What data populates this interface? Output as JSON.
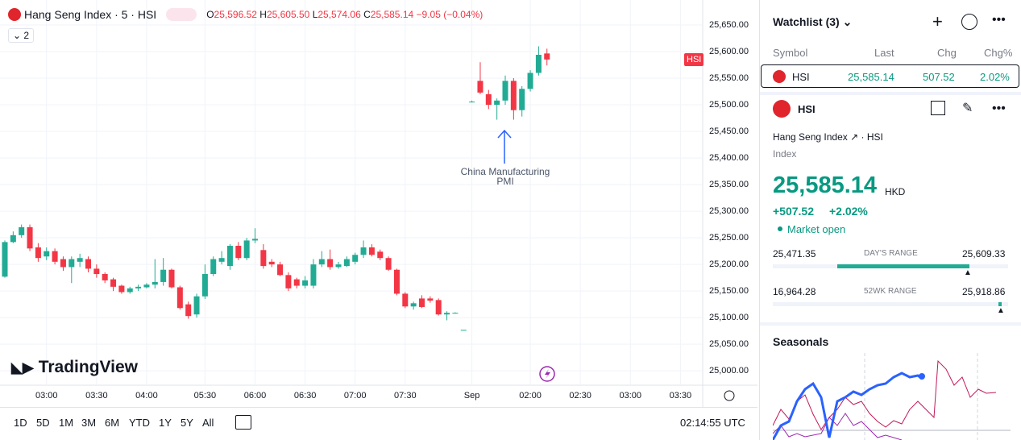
{
  "header": {
    "title": "Hang Seng Index · 5 · HSI",
    "o_label": "O",
    "o": "25,596.52",
    "h_label": "H",
    "h": "25,605.50",
    "l_label": "L",
    "l": "25,574.06",
    "c_label": "C",
    "c": "25,585.14",
    "change": "−9.05 (−0.04%)",
    "indicators": "2"
  },
  "chart_data": {
    "type": "candlestick",
    "categories": [
      null,
      null,
      null,
      null,
      null,
      "03:00",
      null,
      null,
      null,
      null,
      null,
      "03:30",
      null,
      null,
      null,
      null,
      null,
      "04:00",
      null,
      null,
      null,
      null,
      null,
      null,
      "05:30",
      null,
      null,
      null,
      null,
      null,
      "06:00",
      null,
      null,
      null,
      null,
      null,
      "06:30",
      null,
      null,
      null,
      null,
      null,
      "07:00",
      null,
      null,
      null,
      null,
      null,
      "07:30",
      null,
      null,
      null,
      null,
      null,
      null,
      null,
      "Sep",
      null,
      null,
      null,
      null,
      null,
      null,
      "02:00",
      null,
      null,
      null,
      null,
      null,
      "02:30",
      null,
      null,
      null,
      null,
      null,
      "03:00",
      null,
      null,
      null,
      null,
      null,
      "03:30"
    ],
    "open": [
      25177,
      25242,
      25255,
      25270,
      25232,
      25215,
      25225,
      25210,
      25195,
      25205,
      25210,
      25192,
      25182,
      25172,
      25160,
      25148,
      25155,
      25157,
      25162,
      25167,
      25190,
      25157,
      25125,
      25106,
      25140,
      25182,
      25205,
      25197,
      25235,
      25212,
      25245,
      25227,
      25205,
      25200,
      25180,
      25172,
      25160,
      25160,
      25200,
      25210,
      25195,
      25197,
      25205,
      25218,
      25232,
      25224,
      25212,
      25190,
      25145,
      25121,
      25136,
      25136,
      25133,
      25106,
      25108,
      25077,
      25506,
      25545,
      25520,
      25500,
      25508,
      25545,
      25490,
      25530,
      25560,
      25596.52,
      null,
      null,
      null,
      null,
      null,
      null,
      null,
      null,
      null,
      null,
      null,
      null,
      null,
      null,
      null,
      null
    ],
    "high": [
      25245,
      25262,
      25275,
      25275,
      25240,
      25232,
      25230,
      25215,
      25215,
      25220,
      25215,
      25200,
      25185,
      25175,
      25162,
      25158,
      25162,
      25165,
      25210,
      25212,
      25192,
      25160,
      25130,
      25145,
      25200,
      25215,
      25225,
      25238,
      25242,
      25250,
      25268,
      25238,
      25210,
      25205,
      25185,
      25175,
      25178,
      25210,
      25225,
      25228,
      25205,
      25215,
      25222,
      25245,
      25238,
      25228,
      25215,
      25192,
      25148,
      25130,
      25142,
      25140,
      25136,
      25112,
      25110,
      25077,
      25508,
      25580,
      25528,
      25512,
      25555,
      25550,
      25535,
      25565,
      25610,
      25605.5,
      null,
      null,
      null,
      null,
      null,
      null,
      null,
      null,
      null,
      null,
      null,
      null,
      null,
      null,
      null,
      null
    ],
    "low": [
      25175,
      25240,
      25250,
      25225,
      25205,
      25208,
      25200,
      25188,
      25165,
      25195,
      25185,
      25175,
      25165,
      25150,
      25145,
      25145,
      25150,
      25155,
      25155,
      25160,
      25155,
      25115,
      25098,
      25100,
      25135,
      25178,
      25200,
      25190,
      25208,
      25208,
      25240,
      25192,
      25195,
      25178,
      25150,
      25155,
      25155,
      25155,
      25195,
      25190,
      25192,
      25195,
      25200,
      25212,
      25215,
      25208,
      25188,
      25142,
      25118,
      25115,
      25118,
      25128,
      25104,
      25095,
      25108,
      25077,
      25505,
      25520,
      25492,
      25472,
      25500,
      25472,
      25478,
      25525,
      25555,
      25574.06,
      null,
      null,
      null,
      null,
      null,
      null,
      null,
      null,
      null,
      null,
      null,
      null,
      null,
      null,
      null,
      null
    ],
    "close": [
      25242,
      25255,
      25270,
      25230,
      25212,
      25225,
      25205,
      25195,
      25210,
      25212,
      25192,
      25182,
      25170,
      25158,
      25148,
      25155,
      25158,
      25162,
      25167,
      25190,
      25157,
      25118,
      25103,
      25140,
      25182,
      25210,
      25212,
      25235,
      25212,
      25245,
      25248,
      25197,
      25200,
      25180,
      25155,
      25160,
      25170,
      25200,
      25210,
      25195,
      25200,
      25210,
      25218,
      25232,
      25218,
      25212,
      25190,
      25145,
      25121,
      25127,
      25120,
      25132,
      25106,
      25109,
      25109,
      25077,
      25506,
      25523,
      25500,
      25508,
      25545,
      25490,
      25530,
      25560,
      25594,
      25585.14,
      null,
      null,
      null,
      null,
      null,
      null,
      null,
      null,
      null,
      null,
      null,
      null,
      null,
      null,
      null,
      null
    ],
    "up_color": "#22ab94",
    "down_color": "#f23645",
    "ylim": [
      24973,
      25697
    ],
    "yticks": [
      {
        "value": 25000,
        "label": "25,000.00"
      },
      {
        "value": 25050,
        "label": "25,050.00"
      },
      {
        "value": 25100,
        "label": "25,100.00"
      },
      {
        "value": 25150,
        "label": "25,150.00"
      },
      {
        "value": 25200,
        "label": "25,200.00"
      },
      {
        "value": 25250,
        "label": "25,250.00"
      },
      {
        "value": 25300,
        "label": "25,300.00"
      },
      {
        "value": 25350,
        "label": "25,350.00"
      },
      {
        "value": 25400,
        "label": "25,400.00"
      },
      {
        "value": 25450,
        "label": "25,450.00"
      },
      {
        "value": 25500,
        "label": "25,500.00"
      },
      {
        "value": 25550,
        "label": "25,550.00"
      },
      {
        "value": 25600,
        "label": "25,600.00"
      },
      {
        "value": 25650,
        "label": "25,650.00"
      }
    ],
    "grid": true,
    "price_label": "HSI",
    "annotation": "China Manufacturing PMI"
  },
  "logo": "TradingView",
  "toolbar": {
    "ranges": [
      "1D",
      "5D",
      "1M",
      "3M",
      "6M",
      "YTD",
      "1Y",
      "5Y",
      "All"
    ],
    "clock": "02:14:55 UTC"
  },
  "watchlist": {
    "title": "Watchlist (3)",
    "columns": [
      "Symbol",
      "Last",
      "Chg",
      "Chg%"
    ],
    "rows": [
      [
        "HSI",
        "25,585.14",
        "507.52",
        "2.02%"
      ]
    ]
  },
  "details": {
    "symbol": "HSI",
    "name": "Hang Seng Index",
    "exchange": "HSI",
    "kind": "Index",
    "price": "25,585.14",
    "currency": "HKD",
    "change": "+507.52",
    "change_pct": "+2.02%",
    "status": "Market open",
    "days_range": {
      "low": "25,471.35",
      "label": "DAY'S RANGE",
      "high": "25,609.33"
    },
    "wk52_range": {
      "low": "16,964.28",
      "label": "52WK RANGE",
      "high": "25,918.86"
    },
    "seasonals": "Seasonals"
  }
}
